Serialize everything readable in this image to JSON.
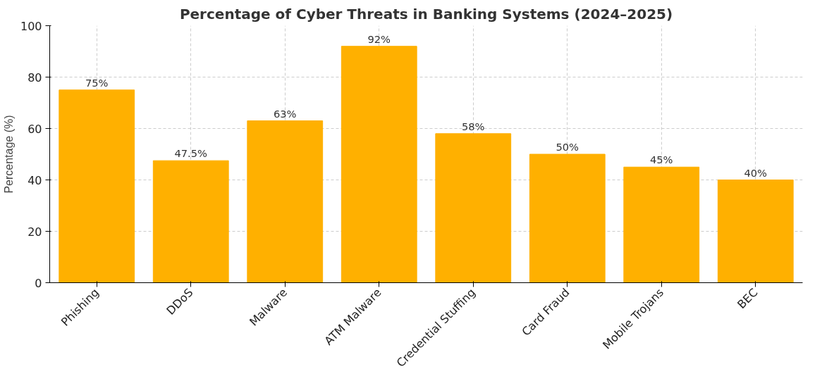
{
  "chart_data": {
    "type": "bar",
    "title": "Percentage of Cyber Threats in Banking Systems (2024–2025)",
    "ylabel": "Percentage (%)",
    "categories": [
      "Phishing",
      "DDoS",
      "Malware",
      "ATM Malware",
      "Credential Stuffing",
      "Card Fraud",
      "Mobile Trojans",
      "BEC"
    ],
    "values": [
      75,
      47.5,
      63,
      92,
      58,
      50,
      45,
      40
    ],
    "value_labels": [
      "75%",
      "47.5%",
      "63%",
      "92%",
      "58%",
      "50%",
      "45%",
      "40%"
    ],
    "color": "#ffb000",
    "ylim": [
      0,
      100
    ],
    "yticks": [
      0,
      20,
      40,
      60,
      80,
      100
    ],
    "grid": true
  }
}
